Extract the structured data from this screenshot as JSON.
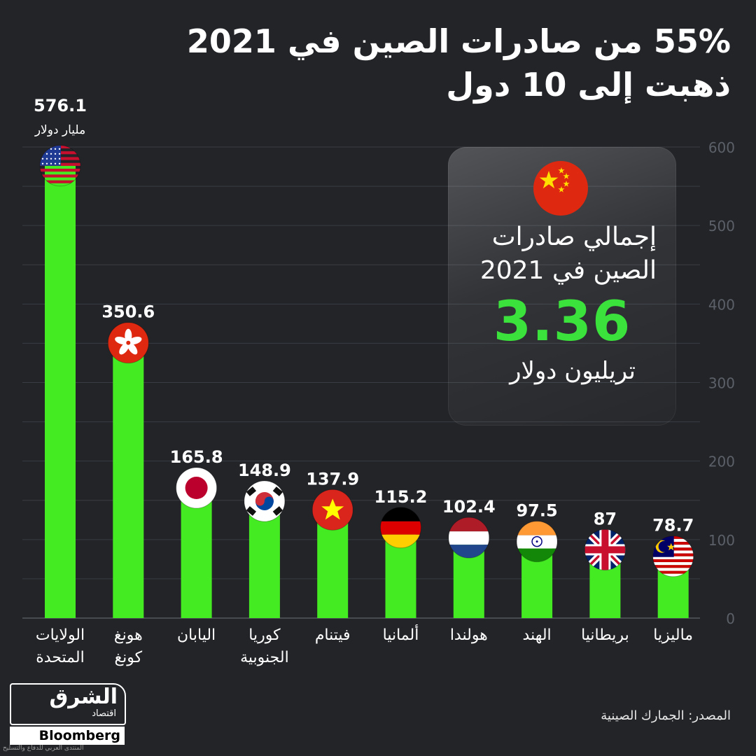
{
  "title": {
    "line1": "55% من صادرات الصين في 2021",
    "line2": "ذهبت إلى 10 دول"
  },
  "info_card": {
    "line1": "إجمالي صادرات",
    "line2": "الصين في 2021",
    "value": "3.36",
    "unit": "تريليون دولار",
    "flag": "china-flag-icon"
  },
  "source": "المصدر: الجمارك الصينية",
  "logo": {
    "brand": "الشرق",
    "sub": "اقتصاد",
    "partner": "Bloomberg"
  },
  "watermark": "المنتدى العربي للدفاع والتسليح",
  "first_unit": "مليار دولار",
  "colors": {
    "background": "#222428",
    "bar": "#44ea22",
    "grid": "#3a3d43",
    "highlight": "#3be23b"
  },
  "chart_data": {
    "type": "bar",
    "title": "55% من صادرات الصين في 2021 ذهبت إلى 10 دول",
    "xlabel": "",
    "ylabel": "",
    "ylim": [
      0,
      600
    ],
    "yticks": [
      0,
      100,
      200,
      300,
      400,
      500,
      600
    ],
    "grid": true,
    "axis_side": "right",
    "categories": [
      [
        "الولايات",
        "المتحدة"
      ],
      [
        "هونغ",
        "كونغ"
      ],
      [
        "اليابان"
      ],
      [
        "كوريا",
        "الجنوبية"
      ],
      [
        "فيتنام"
      ],
      [
        "ألمانيا"
      ],
      [
        "هولندا"
      ],
      [
        "الهند"
      ],
      [
        "بريطانيا"
      ],
      [
        "ماليزيا"
      ]
    ],
    "values": [
      576.1,
      350.6,
      165.8,
      148.9,
      137.9,
      115.2,
      102.4,
      97.5,
      87,
      78.7
    ],
    "value_labels": [
      "576.1",
      "350.6",
      "165.8",
      "148.9",
      "137.9",
      "115.2",
      "102.4",
      "97.5",
      "87",
      "78.7"
    ],
    "flags": [
      "usa-flag-icon",
      "hong-kong-flag-icon",
      "japan-flag-icon",
      "south-korea-flag-icon",
      "vietnam-flag-icon",
      "germany-flag-icon",
      "netherlands-flag-icon",
      "india-flag-icon",
      "uk-flag-icon",
      "malaysia-flag-icon"
    ]
  }
}
